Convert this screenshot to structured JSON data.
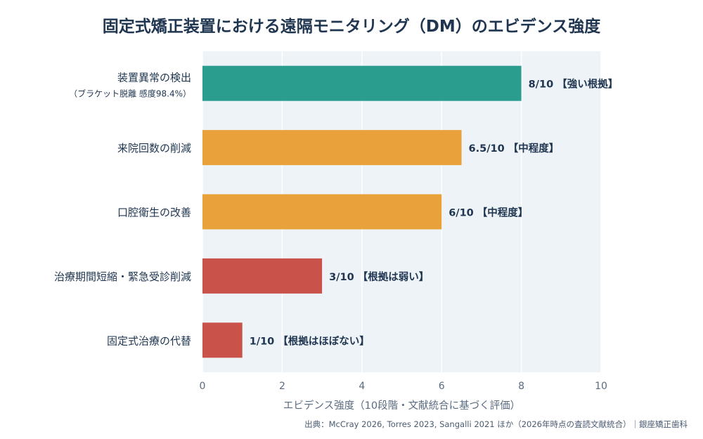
{
  "chart_data": {
    "type": "bar",
    "orientation": "horizontal",
    "title": "固定式矯正装置における遠隔モニタリング（DM）のエビデンス強度",
    "xlabel": "エビデンス強度（10段階・文献統合に基づく評価）",
    "xlim": [
      0,
      10
    ],
    "xticks": [
      "0",
      "2",
      "4",
      "6",
      "8",
      "10"
    ],
    "grid": true,
    "categories": [
      {
        "label": "装置異常の検出",
        "sublabel": "（ブラケット脱離 感度98.4%）"
      },
      {
        "label": "来院回数の削減",
        "sublabel": ""
      },
      {
        "label": "口腔衛生の改善",
        "sublabel": ""
      },
      {
        "label": "治療期間短縮・緊急受診削減",
        "sublabel": ""
      },
      {
        "label": "固定式治療の代替",
        "sublabel": ""
      }
    ],
    "values": [
      8,
      6.5,
      6,
      3,
      1
    ],
    "data_labels": [
      "8/10 【強い根拠】",
      "6.5/10 【中程度】",
      "6/10 【中程度】",
      "3/10 【根拠は弱い】",
      "1/10 【根拠はほぼない】"
    ],
    "colors": [
      "#2a9d8f",
      "#e9a23b",
      "#e9a23b",
      "#c9534a",
      "#c9534a"
    ],
    "plot_background": "#eef3f8",
    "source": "出典：McCray 2026, Torres 2023, Sangalli 2021 ほか（2026年時点の査読文献統合）｜銀座矯正歯科"
  }
}
